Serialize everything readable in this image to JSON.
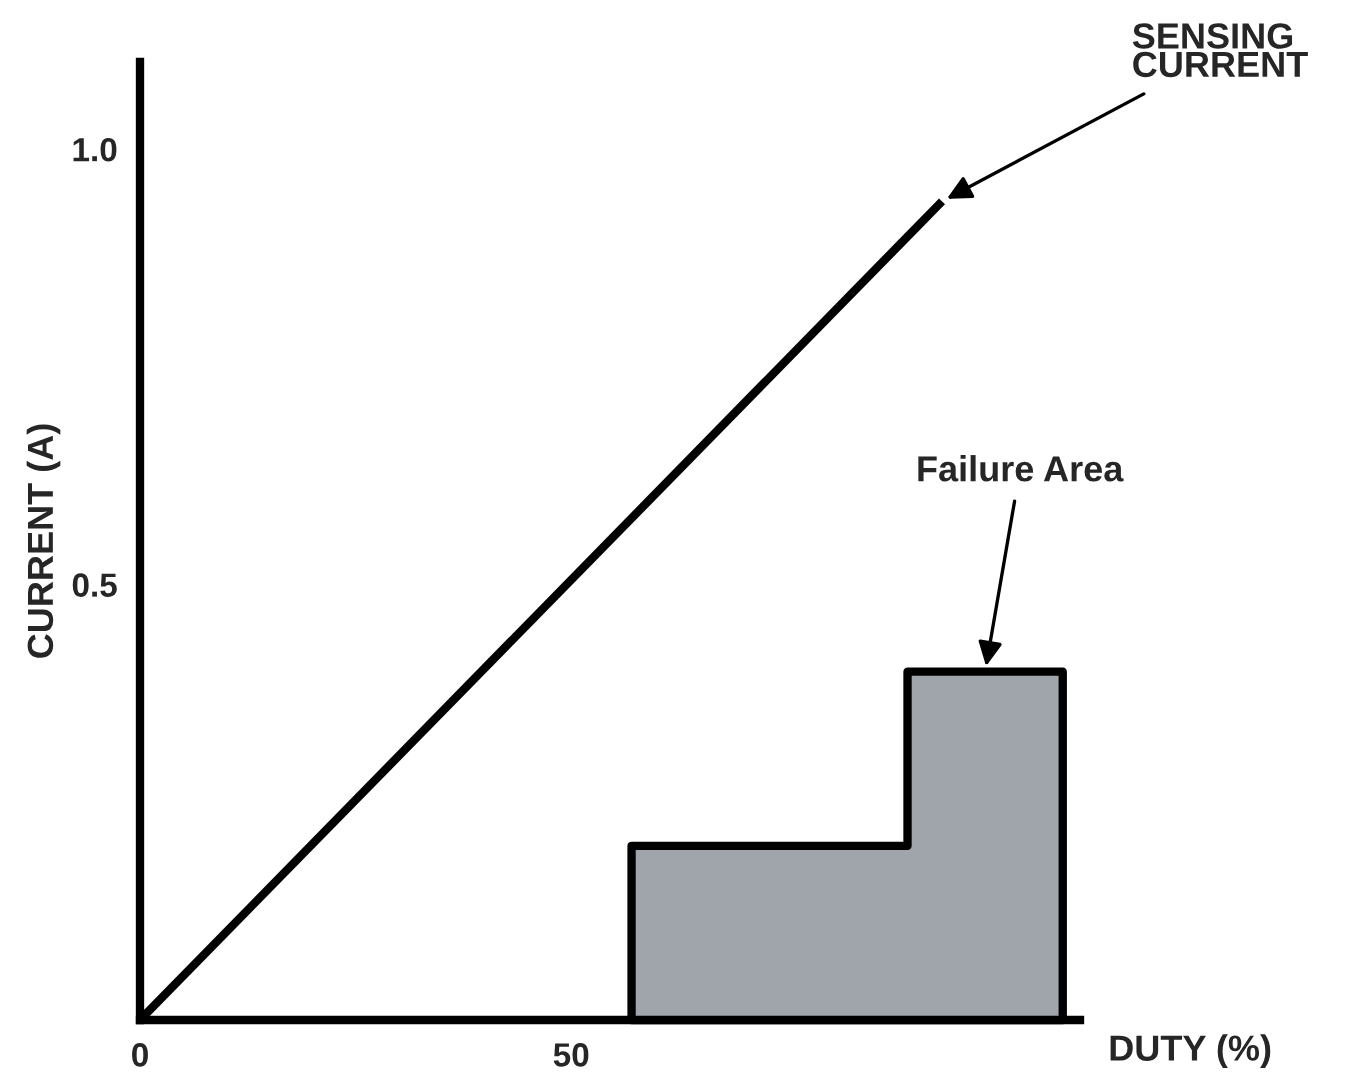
{
  "chart_data": {
    "type": "line",
    "xlabel": "DUTY (%)",
    "ylabel": "CURRENT (A)",
    "xlim": [
      0,
      109
    ],
    "ylim": [
      0,
      1.1
    ],
    "xticks": [
      0,
      50
    ],
    "yticks": [
      {
        "value": 0.5,
        "label": "0.5"
      },
      {
        "value": 1.0,
        "label": "1.0"
      }
    ],
    "grid": false,
    "legend": false,
    "series": [
      {
        "color": "#000000",
        "x": [
          0,
          93
        ],
        "values": [
          0,
          0.94
        ]
      },
      {
        "type": "area",
        "color": "#a0a5ab",
        "x": [
          57,
          57,
          89,
          89,
          107,
          107
        ],
        "values": [
          0,
          0.2,
          0.2,
          0.4,
          0.4,
          0
        ]
      }
    ],
    "annotations": [
      {
        "text": "SENSING\nCURRENT",
        "x": 93,
        "y": 0.94
      },
      {
        "text": "Failure Area",
        "x": 98,
        "y": 0.4
      }
    ]
  }
}
